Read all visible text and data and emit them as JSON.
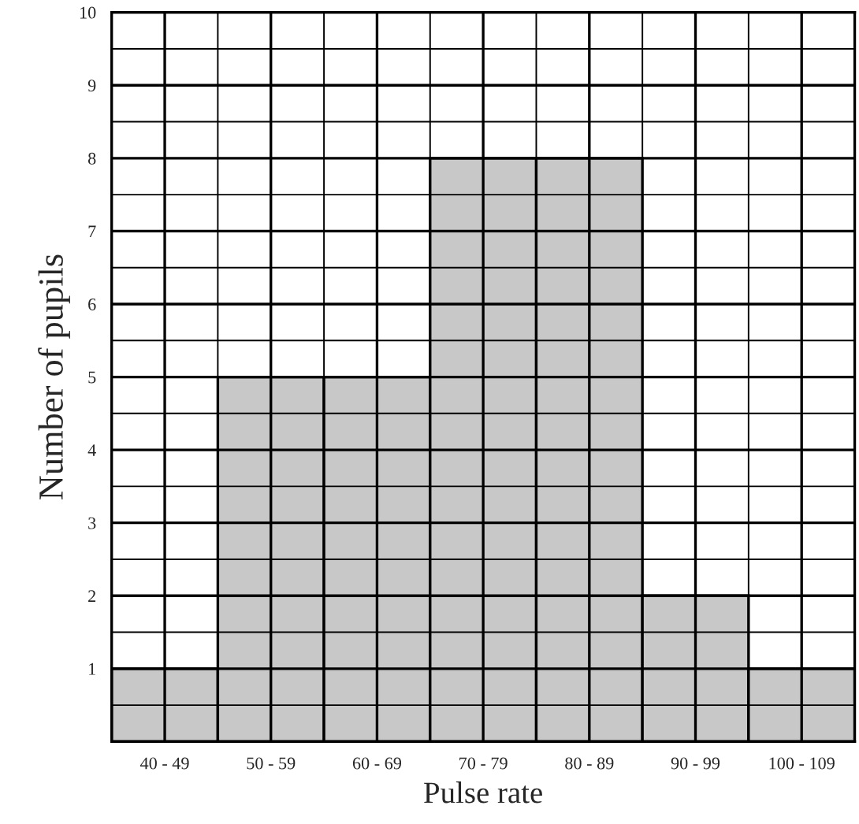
{
  "chart_data": {
    "type": "bar",
    "xlabel": "Pulse rate",
    "ylabel": "Number of pupils",
    "categories": [
      "40 - 49",
      "50 - 59",
      "60 - 69",
      "70 - 79",
      "80 - 89",
      "90 - 99",
      "100 - 109"
    ],
    "values": [
      1,
      5,
      5,
      8,
      8,
      2,
      1
    ],
    "color": "#c8c8c8",
    "ylim": [
      0,
      10
    ],
    "yticks": [
      {
        "value": 0,
        "label": null
      },
      1,
      2,
      3,
      4,
      5,
      6,
      7,
      8,
      9,
      10
    ],
    "grid": true
  }
}
